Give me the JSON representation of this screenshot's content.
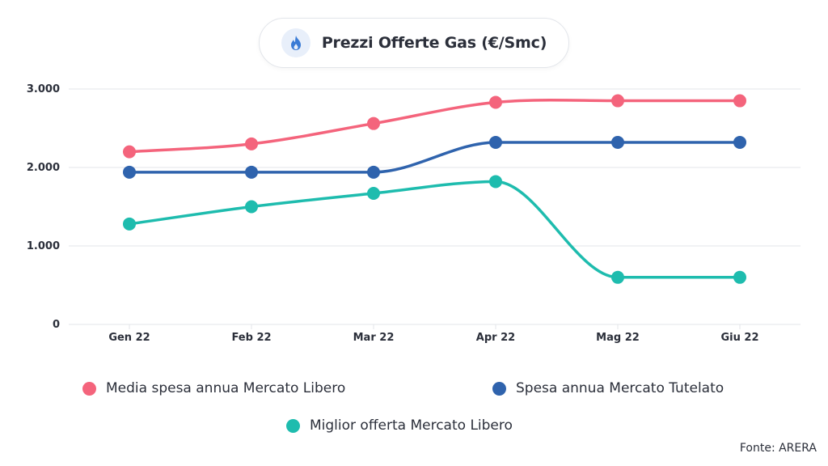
{
  "header": {
    "title": "Prezzi Offerte Gas (€/Smc)",
    "icon": "flame-icon"
  },
  "source": "Fonte: ARERA",
  "colors": {
    "pink": "#f4647c",
    "blue": "#2f63ad",
    "teal": "#1ebcae",
    "grid": "#e3e6ea"
  },
  "chart_data": {
    "type": "line",
    "title": "Prezzi Offerte Gas (€/Smc)",
    "categories": [
      "Gen 22",
      "Feb 22",
      "Mar 22",
      "Apr 22",
      "Mag 22",
      "Giu 22"
    ],
    "y_ticks": [
      "0",
      "1.000",
      "2.000",
      "3.000"
    ],
    "ylim": [
      0,
      3000
    ],
    "grid": true,
    "legend_position": "bottom",
    "smooth": true,
    "series": [
      {
        "name": "Media spesa annua Mercato Libero",
        "color": "#f4647c",
        "values": [
          2200,
          2300,
          2560,
          2830,
          2850,
          2850
        ]
      },
      {
        "name": "Spesa annua Mercato Tutelato",
        "color": "#2f63ad",
        "values": [
          1940,
          1940,
          1940,
          2320,
          2320,
          2320
        ]
      },
      {
        "name": "Miglior offerta Mercato Libero",
        "color": "#1ebcae",
        "values": [
          1280,
          1500,
          1670,
          1820,
          600,
          600
        ]
      }
    ]
  }
}
